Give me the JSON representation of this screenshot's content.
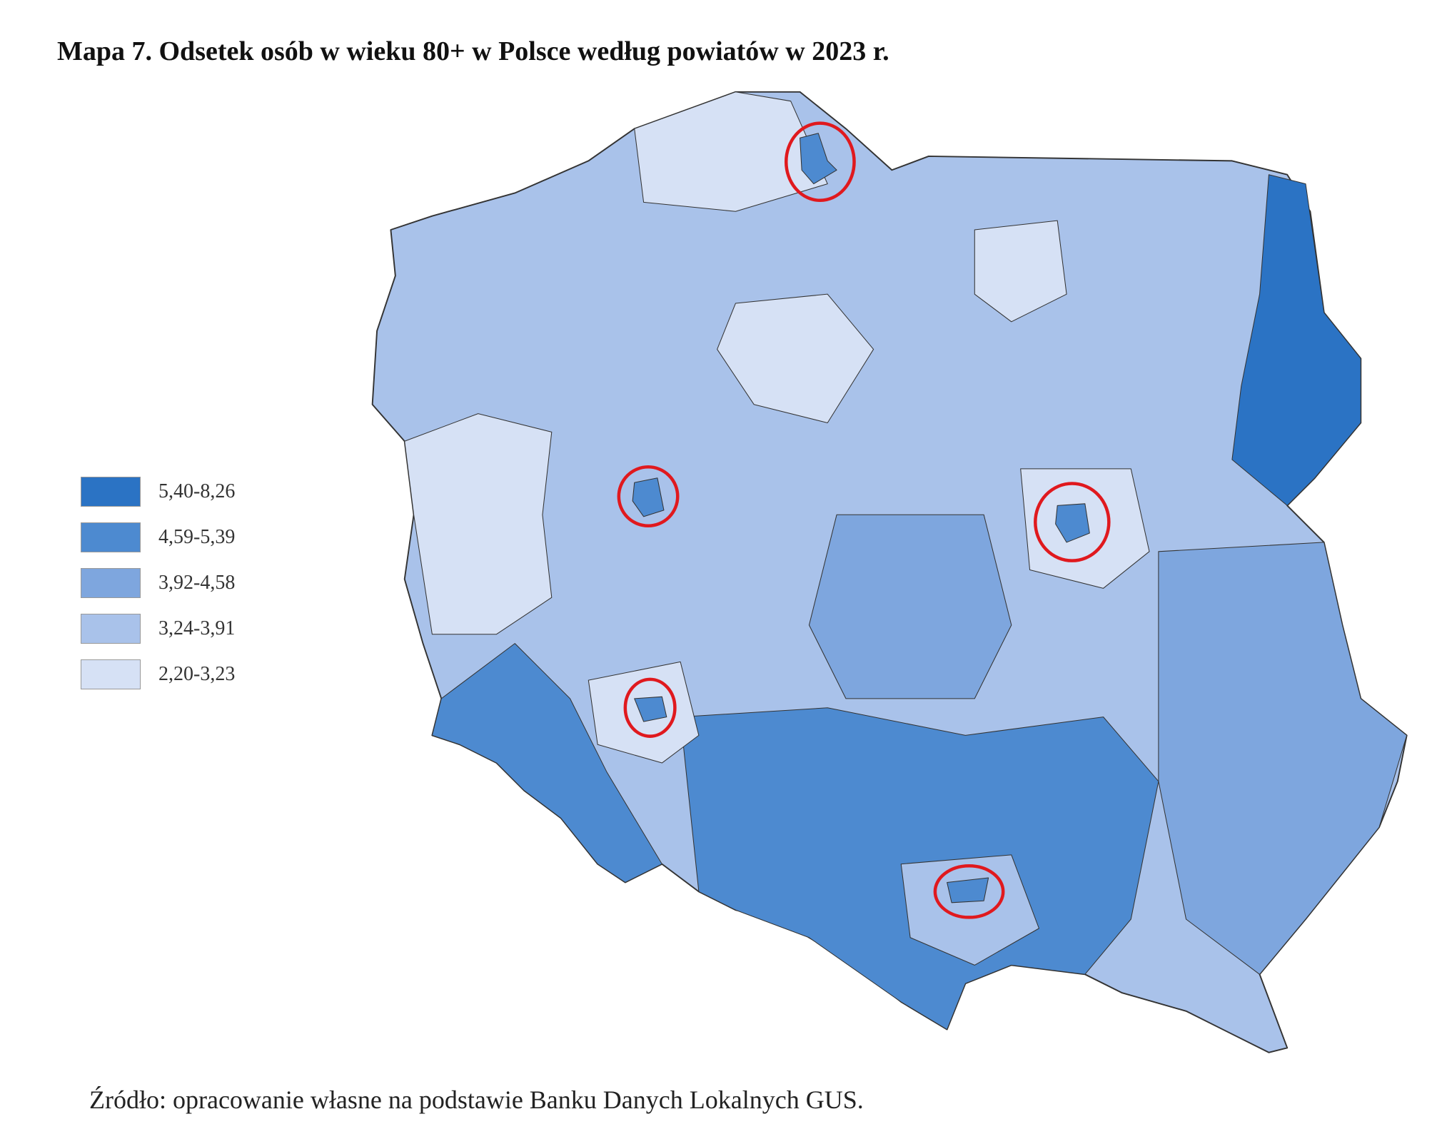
{
  "title": "Mapa 7. Odsetek osób w wieku 80+ w Polsce według powiatów w 2023 r.",
  "legend": {
    "items": [
      {
        "label": "5,40-8,26",
        "color": "#2b73c4"
      },
      {
        "label": "4,59-5,39",
        "color": "#4d8ad0"
      },
      {
        "label": "3,92-4,58",
        "color": "#7ea6de"
      },
      {
        "label": "3,24-3,91",
        "color": "#a9c2ea"
      },
      {
        "label": "2,20-3,23",
        "color": "#d6e1f5"
      }
    ]
  },
  "source": "Źródło: opracowanie własne na podstawie Banku Danych Lokalnych GUS."
}
